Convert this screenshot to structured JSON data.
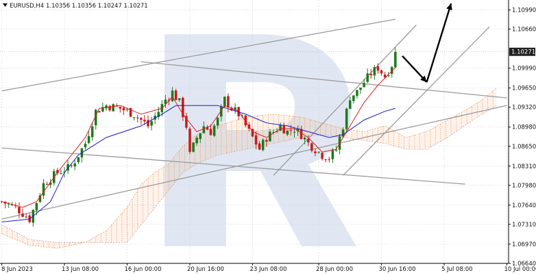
{
  "header": {
    "symbol_timeframe": "EURUSD,H4",
    "ohlc": "1.10356 1.10356 1.10247 1.10271"
  },
  "colors": {
    "bull_candle": "#1d7a1d",
    "bear_candle": "#c41e1e",
    "tenkan": "#e31919",
    "kijun": "#1a1ac8",
    "kumo": "#f0a060",
    "channel_lines": "#9a9a9a",
    "forecast_arrow": "#000000",
    "current_price_label_bg": "#1f1f1f",
    "watermark": "#c9d3e8"
  },
  "chart_data": {
    "type": "candlestick",
    "title": "EURUSD,H4",
    "x_tick_labels": [
      "8 Jun 2023",
      "13 Jun 08:00",
      "16 Jun 00:00",
      "20 Jun 16:00",
      "23 Jun 08:00",
      "28 Jun 00:00",
      "30 Jun 16:00",
      "5 Jul 08:00",
      "10 Jul 00:00"
    ],
    "y_tick_labels": [
      "1.10990",
      "1.10660",
      "1.09990",
      "1.09650",
      "1.09320",
      "1.08980",
      "1.08650",
      "1.08310",
      "1.07980",
      "1.07640",
      "1.07310",
      "1.06970",
      "1.06640"
    ],
    "ylim": [
      1.0664,
      1.1116
    ],
    "current_price": "1.10271",
    "grid": true,
    "close_path": [
      [
        0,
        1.077
      ],
      [
        4,
        1.076
      ],
      [
        8,
        1.074
      ],
      [
        12,
        1.08
      ],
      [
        16,
        1.082
      ],
      [
        20,
        1.083
      ],
      [
        24,
        1.087
      ],
      [
        27,
        1.0925
      ],
      [
        30,
        1.0935
      ],
      [
        34,
        1.093
      ],
      [
        38,
        1.092
      ],
      [
        42,
        1.09
      ],
      [
        45,
        1.0925
      ],
      [
        47,
        1.0945
      ],
      [
        49,
        1.0958
      ],
      [
        51,
        1.094
      ],
      [
        53,
        1.09
      ],
      [
        54,
        1.085
      ],
      [
        56,
        1.088
      ],
      [
        58,
        1.09
      ],
      [
        60,
        1.089
      ],
      [
        62,
        1.091
      ],
      [
        64,
        1.0945
      ],
      [
        66,
        1.093
      ],
      [
        68,
        1.092
      ],
      [
        70,
        1.09
      ],
      [
        72,
        1.088
      ],
      [
        74,
        1.086
      ],
      [
        76,
        1.088
      ],
      [
        78,
        1.089
      ],
      [
        80,
        1.09
      ],
      [
        82,
        1.089
      ],
      [
        84,
        1.0895
      ],
      [
        86,
        1.0885
      ],
      [
        88,
        1.087
      ],
      [
        90,
        1.086
      ],
      [
        92,
        1.085
      ],
      [
        94,
        1.0845
      ],
      [
        96,
        1.086
      ],
      [
        98,
        1.09
      ],
      [
        100,
        1.095
      ],
      [
        102,
        1.0958
      ],
      [
        104,
        1.0975
      ],
      [
        106,
        1.099
      ],
      [
        108,
        1.1
      ],
      [
        110,
        1.0985
      ],
      [
        112,
        1.1005
      ],
      [
        113,
        1.1027
      ]
    ],
    "tenkan_path": [
      [
        0,
        1.077
      ],
      [
        6,
        1.076
      ],
      [
        10,
        1.077
      ],
      [
        16,
        1.082
      ],
      [
        24,
        1.088
      ],
      [
        28,
        1.093
      ],
      [
        34,
        1.0935
      ],
      [
        40,
        1.092
      ],
      [
        46,
        1.093
      ],
      [
        49,
        1.095
      ],
      [
        52,
        1.092
      ],
      [
        56,
        1.089
      ],
      [
        60,
        1.09
      ],
      [
        64,
        1.0935
      ],
      [
        68,
        1.0925
      ],
      [
        72,
        1.089
      ],
      [
        76,
        1.088
      ],
      [
        80,
        1.0895
      ],
      [
        84,
        1.0895
      ],
      [
        88,
        1.088
      ],
      [
        92,
        1.0855
      ],
      [
        96,
        1.086
      ],
      [
        100,
        1.09
      ],
      [
        104,
        1.094
      ],
      [
        108,
        1.097
      ],
      [
        113,
        1.1
      ]
    ],
    "kijun_path": [
      [
        0,
        1.0735
      ],
      [
        8,
        1.074
      ],
      [
        14,
        1.077
      ],
      [
        18,
        1.082
      ],
      [
        22,
        1.085
      ],
      [
        30,
        1.088
      ],
      [
        40,
        1.09
      ],
      [
        46,
        1.092
      ],
      [
        50,
        1.0935
      ],
      [
        54,
        1.0935
      ],
      [
        62,
        1.0935
      ],
      [
        70,
        1.092
      ],
      [
        76,
        1.0905
      ],
      [
        82,
        1.09
      ],
      [
        88,
        1.089
      ],
      [
        94,
        1.088
      ],
      [
        98,
        1.0885
      ],
      [
        104,
        1.091
      ],
      [
        110,
        1.0925
      ],
      [
        113,
        1.093
      ]
    ],
    "kumo_a": [
      [
        0,
        1.0715
      ],
      [
        8,
        1.0695
      ],
      [
        16,
        1.069
      ],
      [
        24,
        1.07
      ],
      [
        30,
        1.072
      ],
      [
        36,
        1.076
      ],
      [
        40,
        1.08
      ],
      [
        44,
        1.082
      ],
      [
        48,
        1.0835
      ],
      [
        52,
        1.0865
      ],
      [
        56,
        1.0885
      ],
      [
        62,
        1.09
      ],
      [
        70,
        1.0915
      ],
      [
        78,
        1.092
      ],
      [
        86,
        1.0915
      ],
      [
        92,
        1.0905
      ],
      [
        98,
        1.0895
      ],
      [
        104,
        1.089
      ],
      [
        110,
        1.09
      ],
      [
        116,
        1.088
      ],
      [
        122,
        1.089
      ],
      [
        128,
        1.091
      ],
      [
        134,
        1.093
      ],
      [
        138,
        1.0945
      ],
      [
        142,
        1.0965
      ]
    ],
    "kumo_b": [
      [
        0,
        1.073
      ],
      [
        8,
        1.0705
      ],
      [
        16,
        1.07
      ],
      [
        24,
        1.07
      ],
      [
        30,
        1.07
      ],
      [
        36,
        1.07
      ],
      [
        40,
        1.073
      ],
      [
        44,
        1.076
      ],
      [
        48,
        1.079
      ],
      [
        52,
        1.082
      ],
      [
        56,
        1.0835
      ],
      [
        62,
        1.085
      ],
      [
        70,
        1.086
      ],
      [
        78,
        1.087
      ],
      [
        86,
        1.088
      ],
      [
        92,
        1.0885
      ],
      [
        98,
        1.088
      ],
      [
        104,
        1.0875
      ],
      [
        110,
        1.087
      ],
      [
        116,
        1.086
      ],
      [
        122,
        1.086
      ],
      [
        128,
        1.088
      ],
      [
        134,
        1.0905
      ],
      [
        138,
        1.092
      ],
      [
        142,
        1.0935
      ]
    ],
    "lines": [
      {
        "name": "upper-channel-top",
        "from": [
          0,
          1.096
        ],
        "to": [
          113,
          1.1083
        ]
      },
      {
        "name": "lower-channel-bottom",
        "from": [
          0,
          1.074
        ],
        "to": [
          145,
          1.0935
        ]
      },
      {
        "name": "descending-top",
        "from": [
          40,
          1.101
        ],
        "to": [
          145,
          1.0948
        ]
      },
      {
        "name": "descending-bottom",
        "from": [
          0,
          1.0862
        ],
        "to": [
          133,
          1.08
        ]
      },
      {
        "name": "rising-channel-upper",
        "from": [
          78,
          1.0815
        ],
        "to": [
          119,
          1.1073
        ]
      },
      {
        "name": "rising-channel-lower",
        "from": [
          98,
          1.0815
        ],
        "to": [
          140,
          1.107
        ]
      }
    ],
    "forecast_arrows": [
      {
        "from": [
          115,
          1.102
        ],
        "to": [
          122,
          1.0975
        ]
      },
      {
        "from": [
          122,
          1.0975
        ],
        "to": [
          129,
          1.111
        ]
      }
    ]
  }
}
